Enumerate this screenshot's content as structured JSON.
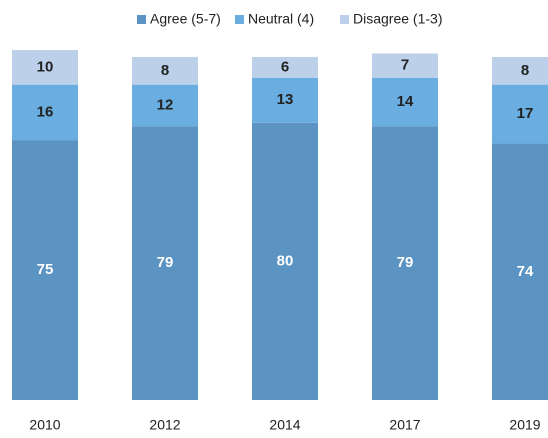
{
  "chart_data": {
    "type": "stacked_bar",
    "categories": [
      "2010",
      "2012",
      "2014",
      "2017",
      "2019"
    ],
    "series": [
      {
        "name": "Agree (5-7)",
        "color": "#5b93c3",
        "values": [
          75,
          79,
          80,
          79,
          74
        ]
      },
      {
        "name": "Neutral (4)",
        "color": "#6aade0",
        "values": [
          16,
          12,
          13,
          14,
          17
        ]
      },
      {
        "name": "Disagree (1-3)",
        "color": "#bcd0ea",
        "values": [
          10,
          8,
          6,
          7,
          8
        ]
      }
    ],
    "ylim": [
      0,
      101
    ],
    "legend": "top"
  }
}
